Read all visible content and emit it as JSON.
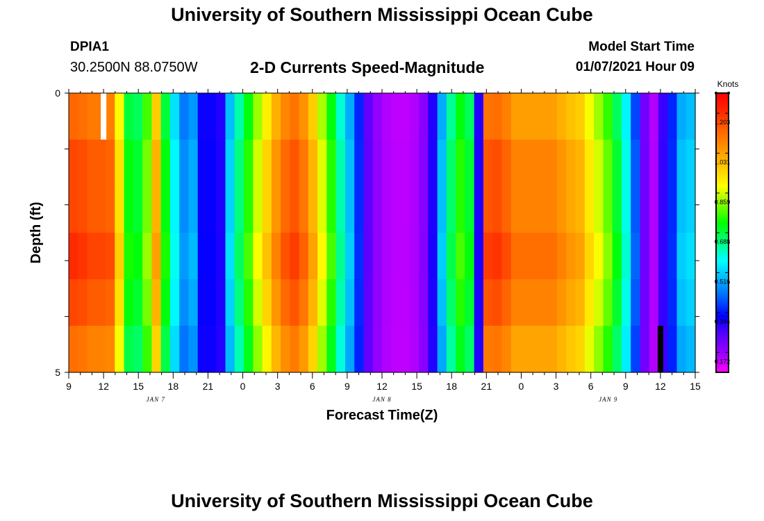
{
  "header": {
    "title": "University of Southern Mississippi Ocean Cube",
    "station_id": "DPIA1",
    "station_location": "30.2500N 88.0750W",
    "model_start_label": "Model Start Time",
    "model_start_value": "01/07/2021 Hour 09"
  },
  "footer": {
    "title": "University of Southern Mississippi Ocean Cube"
  },
  "chart_data": {
    "type": "heatmap",
    "title": "2-D Currents Speed-Magnitude",
    "xlabel": "Forecast Time(Z)",
    "ylabel": "Depth (ft)",
    "colorbar_label": "Knots",
    "x_hours_from_start": [
      0,
      54
    ],
    "y_range": [
      0,
      5
    ],
    "y_tick_labels": [
      "0",
      "5"
    ],
    "x_tick_labels": [
      "9",
      "12",
      "15",
      "18",
      "21",
      "0",
      "3",
      "6",
      "9",
      "12",
      "15",
      "18",
      "21",
      "0",
      "3",
      "6",
      "9",
      "12",
      "15"
    ],
    "date_labels": [
      {
        "text": "JAN 7",
        "hour": 7.5
      },
      {
        "text": "JAN 8",
        "hour": 27
      },
      {
        "text": "JAN 9",
        "hour": 46.5
      }
    ],
    "colorbar_ticks": [
      1.203,
      1.031,
      0.859,
      0.688,
      0.516,
      0.344,
      0.172
    ],
    "colorbar_range": [
      0.086,
      1.29
    ],
    "colorscale": [
      "#ff00ff",
      "#9b00ff",
      "#5a00ff",
      "#0000ff",
      "#0060ff",
      "#00b4ff",
      "#00ffff",
      "#00ff80",
      "#00ff00",
      "#80ff00",
      "#ffff00",
      "#ffc800",
      "#ff9600",
      "#ff6400",
      "#ff2800",
      "#ff0000"
    ],
    "profile_weights": [
      0.96,
      1.0,
      1.0,
      1.03,
      1.0,
      0.95
    ],
    "surface_speeds": [
      1.17,
      1.16,
      1.14,
      1.14,
      1.13,
      0.93,
      0.72,
      0.7,
      0.8,
      1.0,
      0.72,
      0.56,
      0.45,
      0.48,
      0.32,
      0.32,
      0.3,
      0.52,
      0.65,
      0.75,
      0.86,
      0.95,
      1.05,
      1.12,
      1.15,
      1.1,
      1.0,
      0.87,
      0.75,
      0.62,
      0.5,
      0.36,
      0.24,
      0.18,
      0.15,
      0.14,
      0.14,
      0.15,
      0.19,
      0.3,
      0.5,
      0.66,
      0.75,
      0.7,
      0.3,
      1.15,
      1.16,
      1.13,
      1.08,
      1.08,
      1.08,
      1.08,
      1.08,
      1.05,
      1.02,
      1.0,
      0.92,
      0.86,
      0.79,
      0.7,
      0.58,
      0.4,
      0.22,
      0.15,
      0.28,
      0.36,
      0.5,
      0.52
    ]
  }
}
